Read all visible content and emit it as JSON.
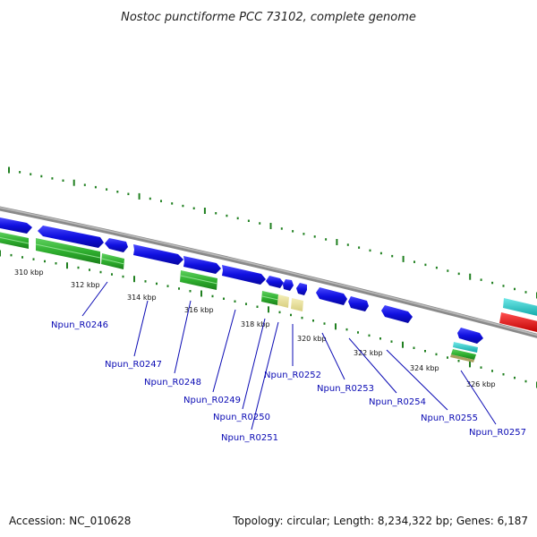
{
  "title": "Nostoc punctiforme PCC 73102, complete genome",
  "footer": {
    "accession": "Accession: NC_010628",
    "summary": "Topology: circular; Length: 8,234,322 bp; Genes: 6,187"
  },
  "scale_labels": [
    "310 kbp",
    "312 kbp",
    "314 kbp",
    "316 kbp",
    "318 kbp",
    "320 kbp",
    "322 kbp",
    "324 kbp",
    "326 kbp"
  ],
  "gene_labels": [
    "Npun_R0246",
    "Npun_R0247",
    "Npun_R0248",
    "Npun_R0249",
    "Npun_R0250",
    "Npun_R0251",
    "Npun_R0252",
    "Npun_R0253",
    "Npun_R0254",
    "Npun_R0255",
    "Npun_R0257"
  ],
  "colors": {
    "cds": "#1010e0",
    "cds_dark": "#0808a0",
    "green_feature": "#30b030",
    "khaki_feature": "#e8e098",
    "cyan_feature": "#20c8c8",
    "red_feature": "#ee0000",
    "backbone": "#888888",
    "tick": "#208020",
    "label": "#0a0ab4"
  }
}
